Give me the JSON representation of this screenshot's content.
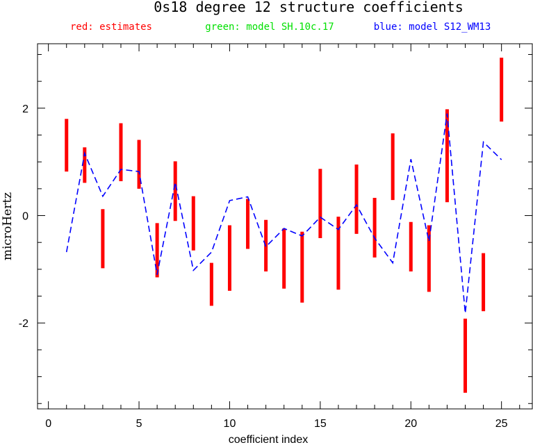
{
  "chart_data": {
    "type": "errorbar-line",
    "title": "0s18 degree 12 structure coefficients",
    "legend": [
      {
        "text": "red: estimates",
        "color": "#ff0000"
      },
      {
        "text": "green: model SH.10c.17",
        "color": "#00e000"
      },
      {
        "text": "blue: model S12_WM13",
        "color": "#0000ff"
      }
    ],
    "xlabel": "coefficient index",
    "ylabel": "microHertz",
    "xlim": [
      -0.6,
      26.7
    ],
    "ylim": [
      -3.6,
      3.2
    ],
    "x_ticks": [
      0,
      5,
      10,
      15,
      20,
      25
    ],
    "y_ticks": [
      -2,
      0,
      2
    ],
    "x_minor_step": 1,
    "y_minor_step": 0.5,
    "estimates": {
      "name": "estimates",
      "color": "#ff0000",
      "x": [
        1,
        2,
        3,
        4,
        5,
        6,
        7,
        8,
        9,
        10,
        11,
        12,
        13,
        14,
        15,
        16,
        17,
        18,
        19,
        20,
        21,
        22,
        23,
        24,
        25
      ],
      "low": [
        0.82,
        0.61,
        -0.98,
        0.64,
        0.5,
        -1.15,
        -0.1,
        -0.65,
        -1.68,
        -1.4,
        -0.62,
        -1.04,
        -1.36,
        -1.62,
        -0.42,
        -1.38,
        -0.34,
        -0.78,
        0.29,
        -1.04,
        -1.42,
        0.25,
        -3.3,
        -1.78,
        1.75
      ],
      "high": [
        1.8,
        1.27,
        0.12,
        1.72,
        1.41,
        -0.14,
        1.01,
        0.36,
        -0.88,
        -0.18,
        0.31,
        -0.08,
        -0.24,
        -0.3,
        0.87,
        -0.02,
        0.95,
        0.33,
        1.53,
        -0.12,
        -0.18,
        1.98,
        -1.92,
        -0.7,
        2.94
      ]
    },
    "model_blue": {
      "name": "model S12_WM13",
      "color": "#0000ff",
      "x": [
        1,
        2,
        3,
        4,
        5,
        6,
        7,
        8,
        9,
        10,
        11,
        12,
        13,
        14,
        15,
        16,
        17,
        18,
        19,
        20,
        21,
        22,
        23,
        24,
        25
      ],
      "y": [
        -0.68,
        1.16,
        0.36,
        0.86,
        0.82,
        -1.1,
        0.62,
        -1.02,
        -0.68,
        0.28,
        0.35,
        -0.58,
        -0.24,
        -0.38,
        -0.03,
        -0.26,
        0.2,
        -0.42,
        -0.88,
        1.05,
        -0.48,
        1.9,
        -1.82,
        1.37,
        1.04
      ]
    }
  }
}
